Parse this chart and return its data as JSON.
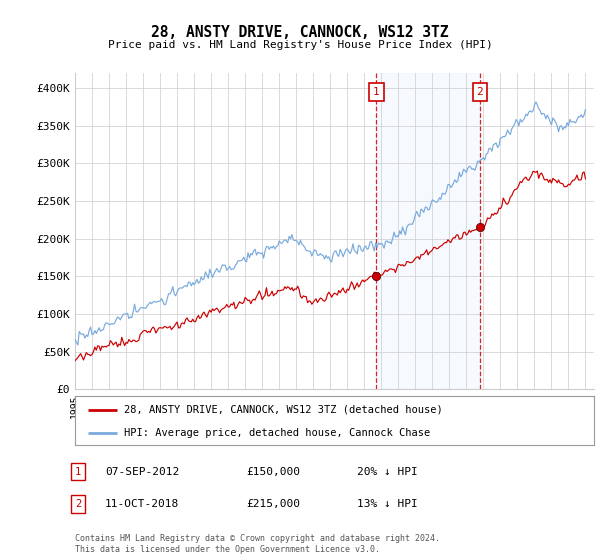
{
  "title": "28, ANSTY DRIVE, CANNOCK, WS12 3TZ",
  "subtitle": "Price paid vs. HM Land Registry's House Price Index (HPI)",
  "ylim": [
    0,
    420000
  ],
  "yticks": [
    0,
    50000,
    100000,
    150000,
    200000,
    250000,
    300000,
    350000,
    400000
  ],
  "ytick_labels": [
    "£0",
    "£50K",
    "£100K",
    "£150K",
    "£200K",
    "£250K",
    "£300K",
    "£350K",
    "£400K"
  ],
  "x_start_year": 1995,
  "x_end_year": 2025,
  "hpi_color": "#7aaadd",
  "price_color": "#cc0000",
  "marker1_x": 2012.708,
  "marker1_price": 150000,
  "marker1_label": "1",
  "marker2_x": 2018.792,
  "marker2_price": 215000,
  "marker2_label": "2",
  "legend_property": "28, ANSTY DRIVE, CANNOCK, WS12 3TZ (detached house)",
  "legend_hpi": "HPI: Average price, detached house, Cannock Chase",
  "footnote3": "Contains HM Land Registry data © Crown copyright and database right 2024.",
  "footnote4": "This data is licensed under the Open Government Licence v3.0.",
  "background_color": "#ffffff",
  "plot_bg_color": "#ffffff",
  "grid_color": "#cccccc",
  "shade_color": "#ddeeff"
}
